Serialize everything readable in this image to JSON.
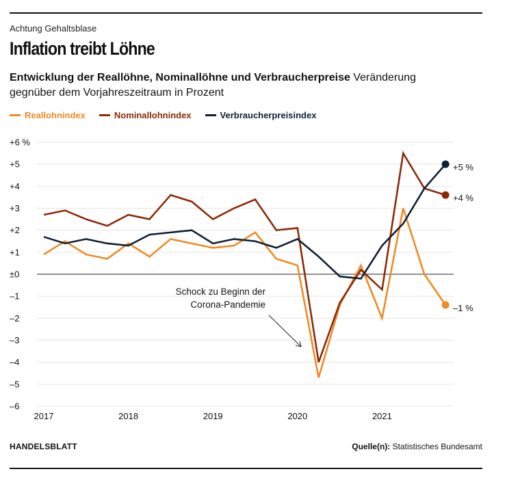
{
  "header": {
    "kicker": "Achtung Gehaltsblase",
    "headline": "Inflation treibt Löhne",
    "subtitle_bold": "Entwicklung der Reallöhne, Nominallöhne und Verbraucherpreise",
    "subtitle_rest": " Veränderung gegnüber dem Vorjahreszeitraum in Prozent"
  },
  "footer": {
    "brand": "HANDELSBLATT",
    "source_label": "Quelle(n):",
    "source_value": " Statistisches Bundesamt"
  },
  "chart_data": {
    "type": "line",
    "title": "Inflation treibt Löhne",
    "ylim": [
      -6,
      6
    ],
    "y_ticks": [
      6,
      5,
      4,
      3,
      2,
      1,
      0,
      -1,
      -2,
      -3,
      -4,
      -5,
      -6
    ],
    "y_tick_labels": [
      "+6 %",
      "+5",
      "+4",
      "+3",
      "+2",
      "+1",
      "±0",
      "–1",
      "–2",
      "–3",
      "–4",
      "–5",
      "–6"
    ],
    "x_tick_labels": [
      "2017",
      "2018",
      "2019",
      "2020",
      "2021"
    ],
    "x": [
      "2017-Q1",
      "2017-Q2",
      "2017-Q3",
      "2017-Q4",
      "2018-Q1",
      "2018-Q2",
      "2018-Q3",
      "2018-Q4",
      "2019-Q1",
      "2019-Q2",
      "2019-Q3",
      "2019-Q4",
      "2020-Q1",
      "2020-Q2",
      "2020-Q3",
      "2020-Q4",
      "2021-Q1",
      "2021-Q2",
      "2021-Q3",
      "2021-Q4"
    ],
    "grid": true,
    "series": [
      {
        "name": "Reallohnindex",
        "color": "#f08a24",
        "values": [
          0.9,
          1.5,
          0.9,
          0.7,
          1.4,
          0.8,
          1.6,
          1.4,
          1.2,
          1.3,
          1.9,
          0.7,
          0.4,
          -4.7,
          -1.4,
          0.4,
          -2.0,
          3.0,
          0.0,
          -1.4
        ],
        "end_label": "–1 %"
      },
      {
        "name": "Nominallohnindex",
        "color": "#8a2a0a",
        "values": [
          2.7,
          2.9,
          2.5,
          2.2,
          2.7,
          2.5,
          3.6,
          3.3,
          2.5,
          3.0,
          3.4,
          2.0,
          2.1,
          -4.0,
          -1.3,
          0.2,
          -0.7,
          5.5,
          3.9,
          3.6
        ],
        "end_label": "+4 %"
      },
      {
        "name": "Verbraucherpreisindex",
        "color": "#0f1f33",
        "values": [
          1.7,
          1.4,
          1.6,
          1.4,
          1.3,
          1.8,
          1.9,
          2.0,
          1.4,
          1.6,
          1.5,
          1.2,
          1.6,
          0.8,
          -0.1,
          -0.2,
          1.3,
          2.3,
          3.9,
          5.0
        ],
        "end_label": "+5 %"
      }
    ],
    "annotation": {
      "line1": "Schock zu Beginn der",
      "line2": "Corona-Pandemie"
    }
  }
}
